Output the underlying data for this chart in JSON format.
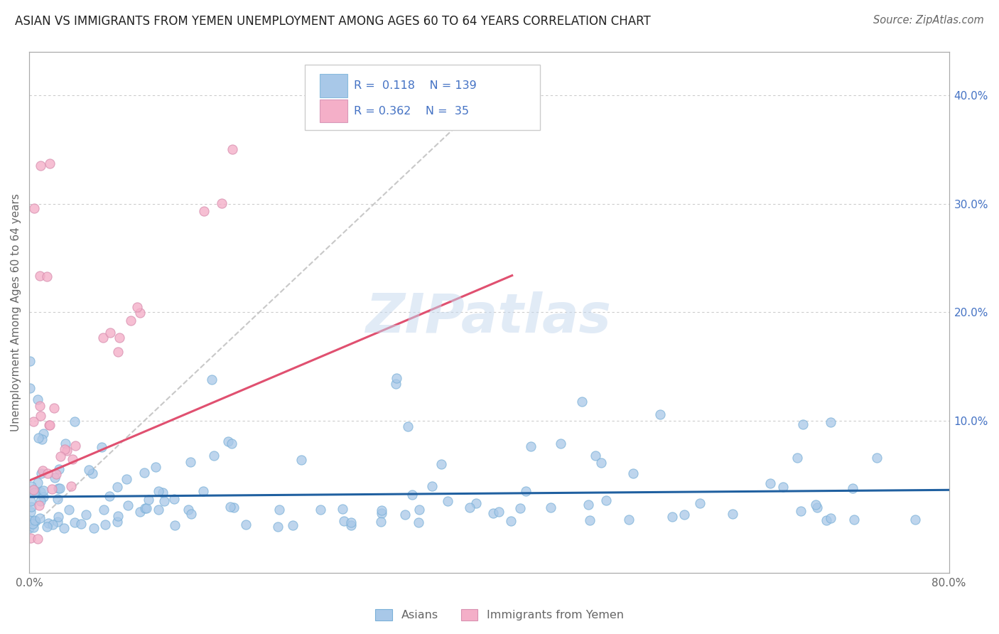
{
  "title": "ASIAN VS IMMIGRANTS FROM YEMEN UNEMPLOYMENT AMONG AGES 60 TO 64 YEARS CORRELATION CHART",
  "source": "Source: ZipAtlas.com",
  "ylabel": "Unemployment Among Ages 60 to 64 years",
  "xlim": [
    0.0,
    0.8
  ],
  "ylim": [
    -0.04,
    0.44
  ],
  "R_asian": 0.118,
  "N_asian": 139,
  "R_yemen": 0.362,
  "N_yemen": 35,
  "legend_label_asian": "Asians",
  "legend_label_yemen": "Immigrants from Yemen",
  "watermark": "ZIPatlas",
  "blue_scatter_color": "#a8c8e8",
  "pink_scatter_color": "#f4afc8",
  "blue_line_color": "#2060a0",
  "pink_line_color": "#e05070",
  "grid_color": "#cccccc",
  "right_tick_color": "#4472c4",
  "text_color": "#666666",
  "title_color": "#222222",
  "legend_blue_fill": "#a8c8e8",
  "legend_pink_fill": "#f4afc8",
  "legend_text_color": "#4472c4"
}
